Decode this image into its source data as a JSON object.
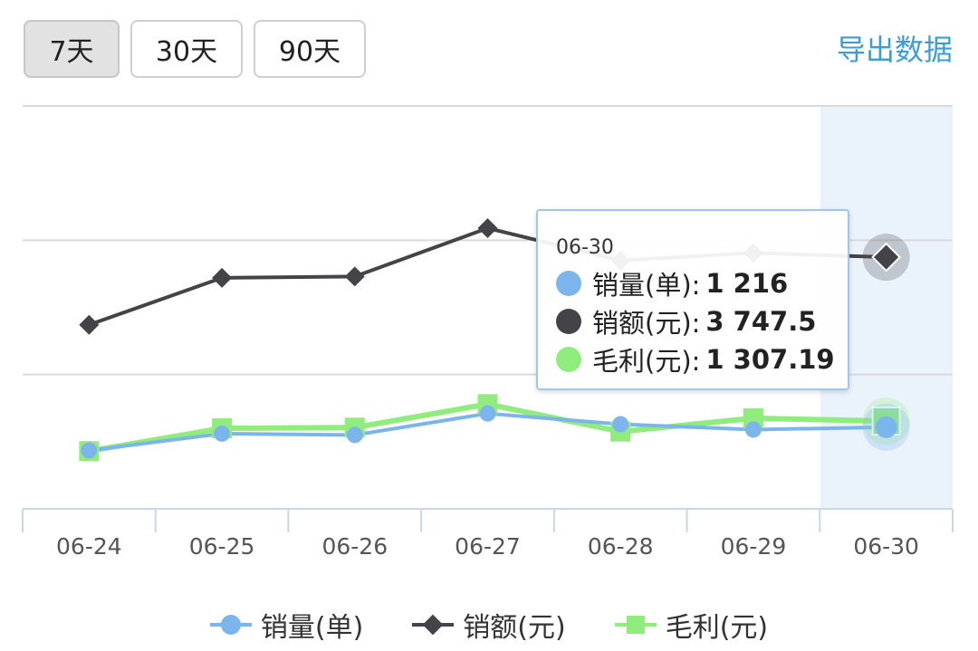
{
  "toolbar": {
    "tabs": [
      {
        "label": "7天",
        "active": true
      },
      {
        "label": "30天",
        "active": false
      },
      {
        "label": "90天",
        "active": false
      }
    ],
    "export_label": "导出数据"
  },
  "chart_data": {
    "type": "line",
    "categories": [
      "06-24",
      "06-25",
      "06-26",
      "06-27",
      "06-28",
      "06-29",
      "06-30"
    ],
    "highlighted_category": "06-30",
    "series": [
      {
        "name": "销量(单)",
        "color": "#7cb5ec",
        "marker": "circle",
        "values": [
          870,
          1120,
          1100,
          1420,
          1260,
          1180,
          1216
        ]
      },
      {
        "name": "销额(元)",
        "color": "#434348",
        "marker": "diamond",
        "values": [
          2740,
          3440,
          3460,
          4180,
          3700,
          3810,
          3747.5
        ]
      },
      {
        "name": "毛利(元)",
        "color": "#90ed7d",
        "marker": "square",
        "values": [
          860,
          1200,
          1210,
          1560,
          1150,
          1350,
          1307.19
        ]
      }
    ],
    "legend": "bottom",
    "grid": true
  },
  "tooltip": {
    "title": "06-30",
    "rows": [
      {
        "label": "销量(单):",
        "value": "1 216",
        "color": "#7cb5ec"
      },
      {
        "label": "销额(元):",
        "value": "3 747.5",
        "color": "#434348"
      },
      {
        "label": "毛利(元):",
        "value": "1 307.19",
        "color": "#90ed7d"
      }
    ]
  }
}
